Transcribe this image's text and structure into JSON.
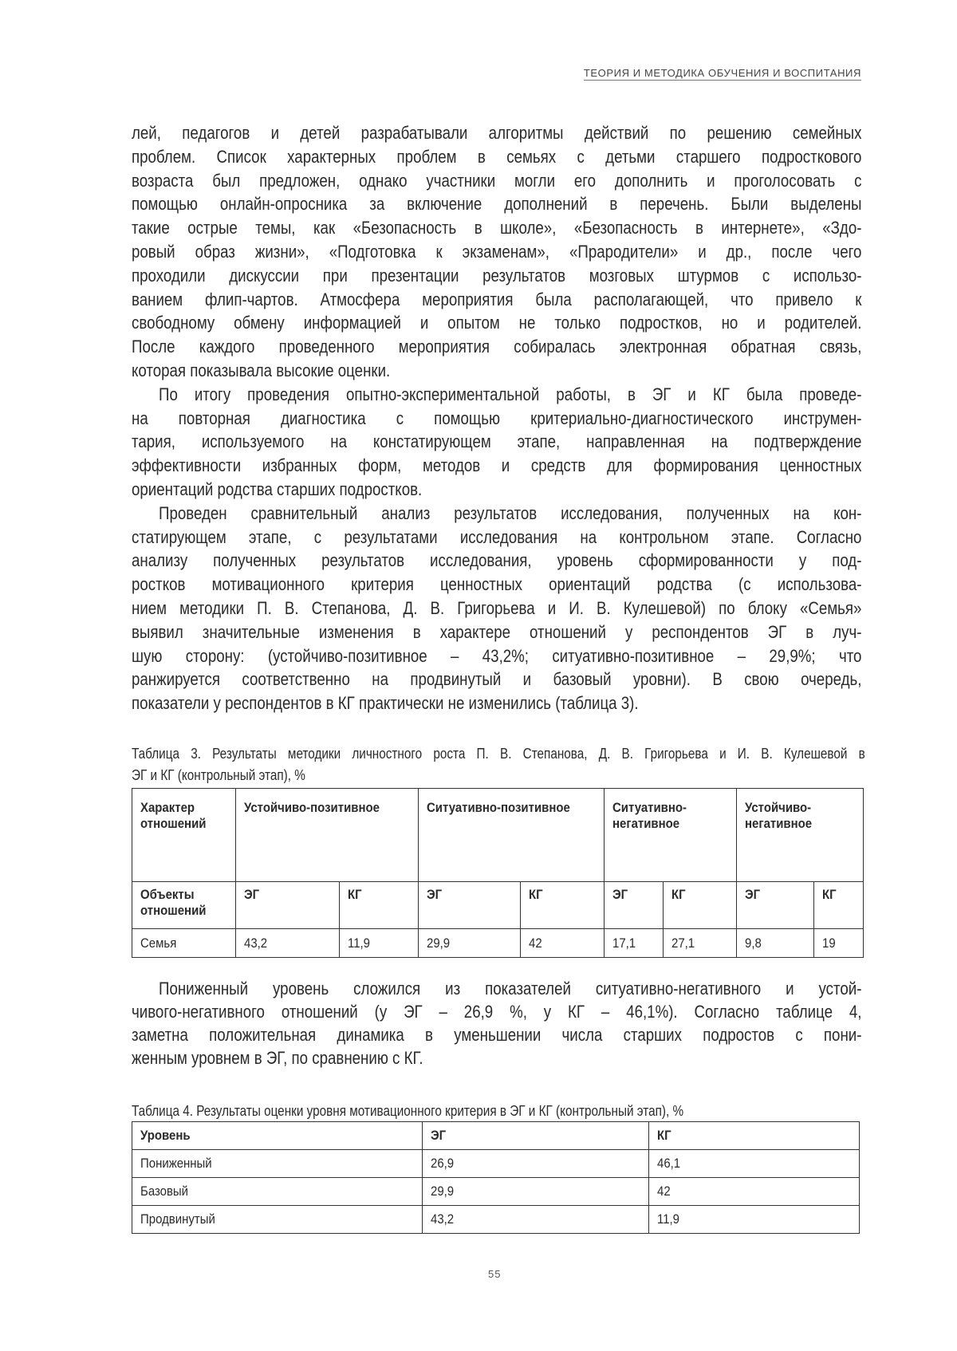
{
  "header": {
    "running_title": "ТЕОРИЯ И МЕТОДИКА ОБУЧЕНИЯ И ВОСПИТАНИЯ"
  },
  "body_lines": [
    "лей, педагогов и детей разрабатывали алгоритмы действий по решению семейных",
    "проблем. Список характерных проблем в семьях с детьми старшего подросткового",
    "возраста был предложен, однако участники могли его дополнить и проголосовать с",
    "помощью онлайн-опросника за включение дополнений в перечень. Были выделены",
    "такие острые темы, как «Безопасность в школе», «Безопасность в интернете», «Здо-",
    "ровый образ жизни», «Подготовка к экзаменам», «Прародители» и др., после чего",
    "проходили дискуссии при презентации результатов мозговых штурмов с использо-",
    "ванием флип-чартов. Атмосфера мероприятия была располагающей, что привело к",
    "свободному обмену информацией и опытом не только подростков, но и родителей.",
    "После каждого проведенного мероприятия собиралась электронная обратная связь,",
    "которая показывала высокие оценки.",
    "По итогу проведения опытно-экспериментальной работы, в ЭГ и КГ была проведе-",
    "на повторная диагностика с помощью критериально-диагностического инструмен-",
    "тария, используемого на констатирующем этапе, направленная на подтверждение",
    "эффективности избранных форм, методов и средств для формирования ценностных",
    "ориентаций родства старших подростков.",
    "Проведен сравнительный анализ результатов исследования, полученных на кон-",
    "статирующем этапе, с результатами исследования на контрольном этапе. Согласно",
    "анализу полученных результатов исследования, уровень сформированности у под-",
    "ростков мотивационного критерия ценностных ориентаций родства (с использова-",
    "нием методики П. В. Степанова, Д. В. Григорьева и И. В. Кулешевой) по блоку «Семья»",
    "выявил значительные изменения в характере отношений у респондентов ЭГ в луч-",
    "шую сторону: (устойчиво-позитивное – 43,2%; ситуативно-позитивное – 29,9%; что",
    "ранжируется соответственно на продвинутый и базовый уровни). В свою очередь,",
    "показатели у респондентов в КГ практически не изменились (таблица 3)."
  ],
  "table3": {
    "caption_lines": [
      "Таблица 3. Результаты методики личностного роста П. В. Степанова, Д. В. Григорьева и И. В. Кулешевой в",
      "ЭГ и КГ (контрольный этап), %"
    ],
    "row_header_1": "Характер отношений",
    "row_header_2": "Объекты отношений",
    "categories": [
      "Устойчиво-позитивное",
      "Ситуативно-позитивное",
      "Ситуативно-негативное",
      "Устойчиво-негативное"
    ],
    "groups": [
      "ЭГ",
      "КГ"
    ],
    "row_label": "Семья",
    "values": [
      "43,2",
      "11,9",
      "29,9",
      "42",
      "17,1",
      "27,1",
      "9,8",
      "19"
    ]
  },
  "paragraph2_lines": [
    "Пониженный уровень сложился из показателей ситуативно-негативного и устой-",
    "чивого-негативного отношений (у ЭГ – 26,9 %, у КГ – 46,1%). Согласно таблице 4,",
    "заметна положительная динамика в уменьшении числа старших подростов с пони-",
    "женным уровнем в ЭГ, по сравнению с КГ."
  ],
  "table4": {
    "caption": "Таблица 4. Результаты оценки уровня мотивационного критерия в ЭГ и КГ (контрольный этап), %",
    "headers": [
      "Уровень",
      "ЭГ",
      "КГ"
    ],
    "rows": [
      [
        "Пониженный",
        "26,9",
        "46,1"
      ],
      [
        "Базовый",
        "29,9",
        "42"
      ],
      [
        "Продвинутый",
        "43,2",
        "11,9"
      ]
    ]
  },
  "page_number": "55"
}
